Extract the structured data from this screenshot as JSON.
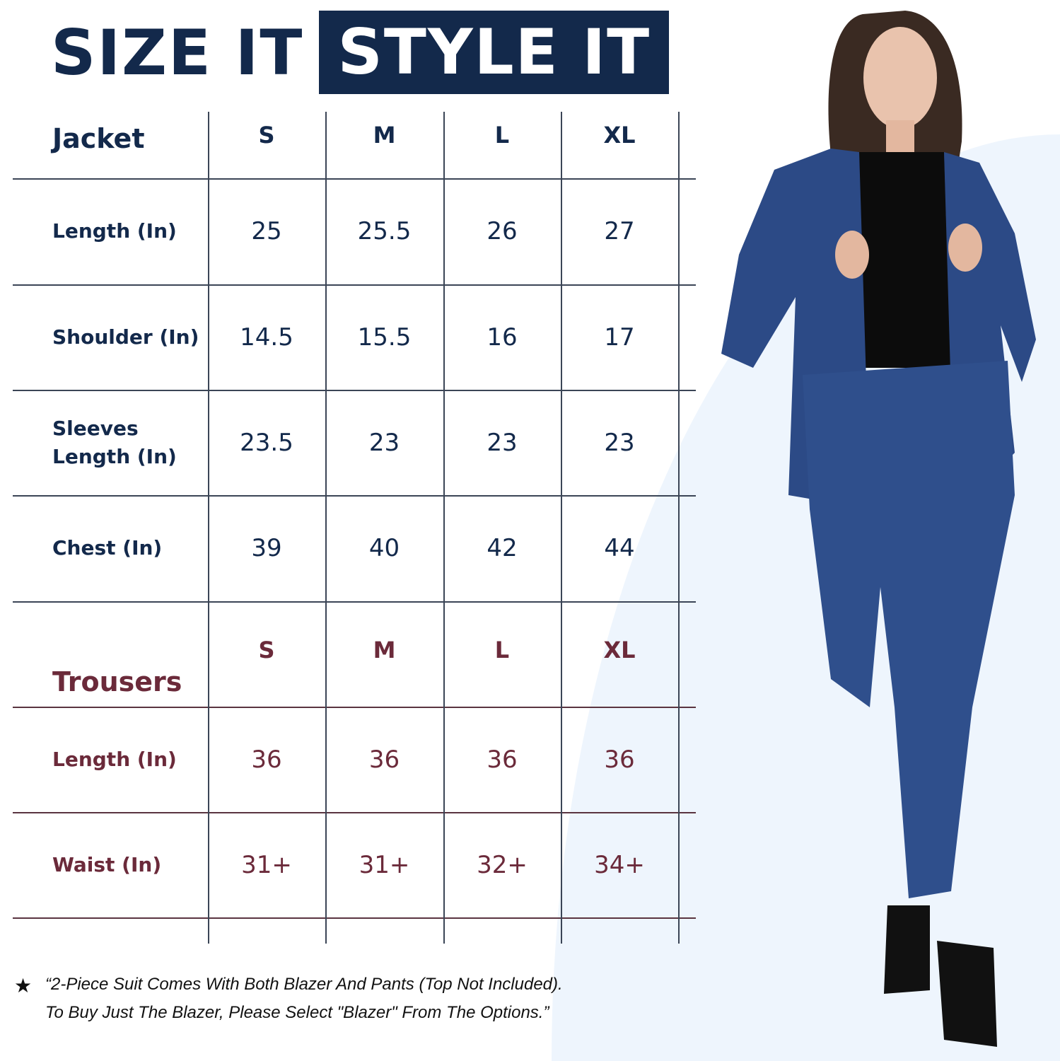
{
  "title": {
    "part1": "SIZE IT",
    "part2": "STYLE IT"
  },
  "colors": {
    "navy": "#13294b",
    "maroon": "#6b2a3a",
    "background_curve": "#eef5fd"
  },
  "jacket": {
    "heading": "Jacket",
    "sizes": [
      "S",
      "M",
      "L",
      "XL"
    ],
    "rows": [
      {
        "label": "Length (In)",
        "values": [
          "25",
          "25.5",
          "26",
          "27"
        ]
      },
      {
        "label": "Shoulder (In)",
        "values": [
          "14.5",
          "15.5",
          "16",
          "17"
        ]
      },
      {
        "label": "Sleeves\nLength (In)",
        "values": [
          "23.5",
          "23",
          "23",
          "23"
        ]
      },
      {
        "label": "Chest (In)",
        "values": [
          "39",
          "40",
          "42",
          "44"
        ]
      }
    ]
  },
  "trousers": {
    "heading": "Trousers",
    "sizes": [
      "S",
      "M",
      "L",
      "XL"
    ],
    "rows": [
      {
        "label": "Length (In)",
        "values": [
          "36",
          "36",
          "36",
          "36"
        ]
      },
      {
        "label": "Waist (In)",
        "values": [
          "31+",
          "31+",
          "32+",
          "34+"
        ]
      }
    ]
  },
  "note": {
    "icon": "star-icon",
    "line1": "“2-Piece Suit Comes With Both Blazer And Pants (Top Not Included).",
    "line2": "To Buy Just The Blazer, Please Select \"Blazer\" From The Options.”"
  }
}
